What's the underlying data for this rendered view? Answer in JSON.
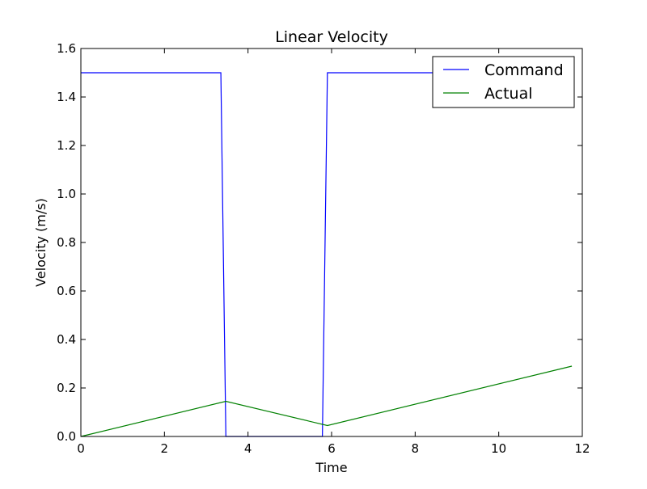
{
  "chart_data": {
    "type": "line",
    "title": "Linear Velocity",
    "xlabel": "Time",
    "ylabel": "Velocity (m/s)",
    "xlim": [
      0,
      12
    ],
    "ylim": [
      0,
      1.6
    ],
    "xticks": [
      0,
      2,
      4,
      6,
      8,
      10,
      12
    ],
    "yticks": [
      0.0,
      0.2,
      0.4,
      0.6,
      0.8,
      1.0,
      1.2,
      1.4,
      1.6
    ],
    "xtick_labels": [
      "0",
      "2",
      "4",
      "6",
      "8",
      "10",
      "12"
    ],
    "ytick_labels": [
      "0.0",
      "0.2",
      "0.4",
      "0.6",
      "0.8",
      "1.0",
      "1.2",
      "1.4",
      "1.6"
    ],
    "grid": false,
    "legend": {
      "position": "top-right",
      "entries": [
        "Command",
        "Actual"
      ]
    },
    "series": [
      {
        "name": "Command",
        "color": "#0000ff",
        "points": [
          [
            0,
            1.5
          ],
          [
            3.35,
            1.5
          ],
          [
            3.47,
            0.0
          ],
          [
            5.78,
            0.0
          ],
          [
            5.9,
            1.5
          ],
          [
            11.75,
            1.5
          ]
        ]
      },
      {
        "name": "Actual",
        "color": "#008000",
        "points": [
          [
            0,
            0.0
          ],
          [
            3.47,
            0.145
          ],
          [
            5.9,
            0.045
          ],
          [
            11.75,
            0.29
          ]
        ]
      }
    ]
  }
}
